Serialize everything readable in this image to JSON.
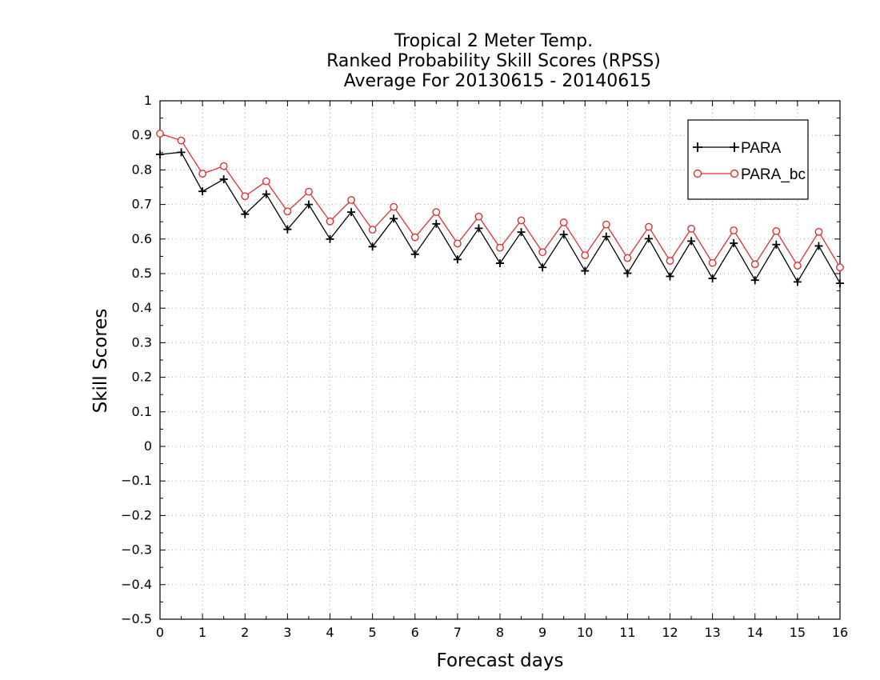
{
  "chart_data": {
    "type": "line",
    "title": [
      "Tropical 2 Meter Temp.",
      "Ranked Probability Skill Scores (RPSS)",
      "Average For 20130615 - 20140615"
    ],
    "xlabel": "Forecast days",
    "ylabel": "Skill Scores",
    "xlim": [
      0,
      16
    ],
    "ylim": [
      -0.5,
      1
    ],
    "xticks": [
      "0",
      "1",
      "2",
      "3",
      "4",
      "5",
      "6",
      "7",
      "8",
      "9",
      "10",
      "11",
      "12",
      "13",
      "14",
      "15",
      "16"
    ],
    "yticks": [
      "1",
      "0.9",
      "0.8",
      "0.7",
      "0.6",
      "0.5",
      "0.4",
      "0.3",
      "0.2",
      "0.1",
      "0",
      "-0.1",
      "-0.2",
      "-0.3",
      "-0.4",
      "-0.5"
    ],
    "grid": true,
    "legend_position": "top-right",
    "x": [
      0,
      0.5,
      1,
      1.5,
      2,
      2.5,
      3,
      3.5,
      4,
      4.5,
      5,
      5.5,
      6,
      6.5,
      7,
      7.5,
      8,
      8.5,
      9,
      9.5,
      10,
      10.5,
      11,
      11.5,
      12,
      12.5,
      13,
      13.5,
      14,
      14.5,
      15,
      15.5,
      16
    ],
    "series": [
      {
        "name": "PARA",
        "color": "#000000",
        "marker": "plus",
        "values": [
          0.845,
          0.851,
          0.738,
          0.773,
          0.672,
          0.73,
          0.628,
          0.7,
          0.6,
          0.678,
          0.578,
          0.659,
          0.556,
          0.644,
          0.541,
          0.631,
          0.53,
          0.62,
          0.518,
          0.613,
          0.508,
          0.607,
          0.501,
          0.601,
          0.492,
          0.594,
          0.486,
          0.588,
          0.481,
          0.584,
          0.476,
          0.58,
          0.472
        ]
      },
      {
        "name": "PARA_bc",
        "color": "#e03030",
        "marker": "circle",
        "values": [
          0.905,
          0.885,
          0.789,
          0.811,
          0.724,
          0.767,
          0.68,
          0.737,
          0.651,
          0.713,
          0.627,
          0.693,
          0.605,
          0.678,
          0.587,
          0.665,
          0.575,
          0.654,
          0.562,
          0.648,
          0.553,
          0.642,
          0.545,
          0.635,
          0.537,
          0.63,
          0.531,
          0.625,
          0.527,
          0.623,
          0.523,
          0.621,
          0.518
        ]
      }
    ]
  }
}
